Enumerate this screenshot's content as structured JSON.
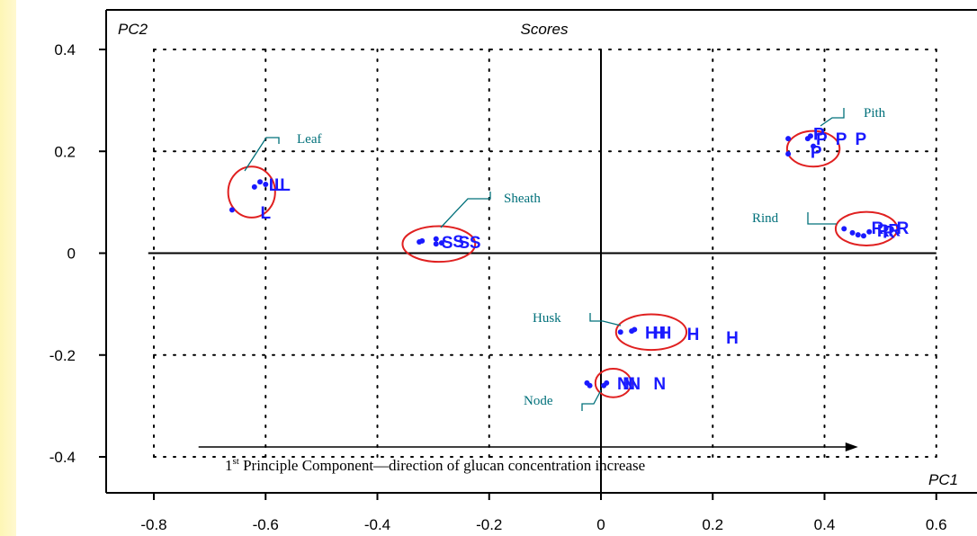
{
  "chart_data": {
    "type": "scatter",
    "title": "Scores",
    "xlabel": "PC1",
    "ylabel": "PC2",
    "xlim": [
      -0.88,
      0.63
    ],
    "ylim": [
      -0.48,
      0.43
    ],
    "xticks": [
      -0.8,
      -0.6,
      -0.4,
      -0.2,
      0,
      0.2,
      0.4,
      0.6
    ],
    "yticks": [
      -0.4,
      -0.2,
      0,
      0.2,
      0.4
    ],
    "xtick_labels": [
      "-0.8",
      "-0.6",
      "-0.4",
      "-0.2",
      "0",
      "0.2",
      "0.4",
      "0.6"
    ],
    "ytick_labels": [
      "-0.4",
      "-0.2",
      "0",
      "0.2",
      "0.4"
    ],
    "grid": true,
    "grid_x": [
      -0.8,
      -0.6,
      -0.4,
      -0.2,
      0.2,
      0.4,
      0.6
    ],
    "grid_y": [
      -0.2,
      0.2
    ],
    "groups": [
      {
        "name": "Leaf",
        "points": [
          [
            -0.66,
            0.085
          ],
          [
            -0.62,
            0.13
          ],
          [
            -0.61,
            0.14
          ],
          [
            -0.6,
            0.135
          ]
        ],
        "letters": [
          [
            -0.6,
            0.08,
            "L"
          ],
          [
            -0.585,
            0.135,
            "L"
          ],
          [
            -0.575,
            0.135,
            "L"
          ],
          [
            -0.565,
            0.135,
            "L"
          ]
        ],
        "ellipse": {
          "cx": -0.625,
          "cy": 0.12,
          "rx": 0.042,
          "ry": 0.05
        }
      },
      {
        "name": "Sheath",
        "points": [
          [
            -0.325,
            0.022
          ],
          [
            -0.32,
            0.024
          ],
          [
            -0.295,
            0.028
          ],
          [
            -0.295,
            0.018
          ],
          [
            -0.285,
            0.02
          ]
        ],
        "letters": [
          [
            -0.275,
            0.022,
            "S"
          ],
          [
            -0.255,
            0.024,
            "S"
          ],
          [
            -0.245,
            0.022,
            "S"
          ],
          [
            -0.225,
            0.022,
            "S"
          ]
        ],
        "ellipse": {
          "cx": -0.29,
          "cy": 0.018,
          "rx": 0.065,
          "ry": 0.035
        }
      },
      {
        "name": "Pith",
        "points": [
          [
            0.335,
            0.225
          ],
          [
            0.335,
            0.195
          ],
          [
            0.37,
            0.225
          ],
          [
            0.375,
            0.23
          ],
          [
            0.38,
            0.21
          ]
        ],
        "letters": [
          [
            0.39,
            0.235,
            "P"
          ],
          [
            0.395,
            0.225,
            "P"
          ],
          [
            0.385,
            0.2,
            "P"
          ],
          [
            0.43,
            0.225,
            "P"
          ],
          [
            0.465,
            0.225,
            "P"
          ]
        ],
        "ellipse": {
          "cx": 0.38,
          "cy": 0.205,
          "rx": 0.047,
          "ry": 0.035
        }
      },
      {
        "name": "Rind",
        "points": [
          [
            0.435,
            0.048
          ],
          [
            0.45,
            0.04
          ],
          [
            0.46,
            0.036
          ],
          [
            0.47,
            0.034
          ],
          [
            0.48,
            0.042
          ]
        ],
        "letters": [
          [
            0.495,
            0.05,
            "R"
          ],
          [
            0.505,
            0.045,
            "R"
          ],
          [
            0.515,
            0.042,
            "R"
          ],
          [
            0.525,
            0.046,
            "R"
          ],
          [
            0.54,
            0.05,
            "R"
          ]
        ],
        "ellipse": {
          "cx": 0.475,
          "cy": 0.048,
          "rx": 0.055,
          "ry": 0.033
        }
      },
      {
        "name": "Husk",
        "points": [
          [
            0.035,
            -0.155
          ],
          [
            0.055,
            -0.153
          ],
          [
            0.06,
            -0.15
          ]
        ],
        "letters": [
          [
            0.09,
            -0.155,
            "H"
          ],
          [
            0.105,
            -0.155,
            "H"
          ],
          [
            0.115,
            -0.155,
            "H"
          ],
          [
            0.165,
            -0.158,
            "H"
          ],
          [
            0.235,
            -0.165,
            "H"
          ]
        ],
        "ellipse": {
          "cx": 0.09,
          "cy": -0.155,
          "rx": 0.063,
          "ry": 0.035
        }
      },
      {
        "name": "Node",
        "points": [
          [
            -0.025,
            -0.255
          ],
          [
            -0.02,
            -0.26
          ],
          [
            0.005,
            -0.26
          ],
          [
            0.01,
            -0.255
          ]
        ],
        "letters": [
          [
            0.04,
            -0.255,
            "N"
          ],
          [
            0.05,
            -0.255,
            "N"
          ],
          [
            0.06,
            -0.255,
            "N"
          ],
          [
            0.105,
            -0.255,
            "N"
          ]
        ],
        "ellipse": {
          "cx": 0.022,
          "cy": -0.255,
          "rx": 0.032,
          "ry": 0.028
        }
      }
    ],
    "annotations": [
      {
        "text": "Leaf"
      },
      {
        "text": "Sheath"
      },
      {
        "text": "Pith"
      },
      {
        "text": "Rind"
      },
      {
        "text": "Husk"
      },
      {
        "text": "Node"
      }
    ],
    "arrow_caption": {
      "prefix": "1",
      "superscript": "st",
      "text": " Principle Component—direction of glucan concentration increase",
      "x_start": -0.72,
      "x_end": 0.46
    },
    "point_color": "#1a1aff",
    "ellipse_color": "#e02020",
    "annotation_color": "#00707a"
  }
}
